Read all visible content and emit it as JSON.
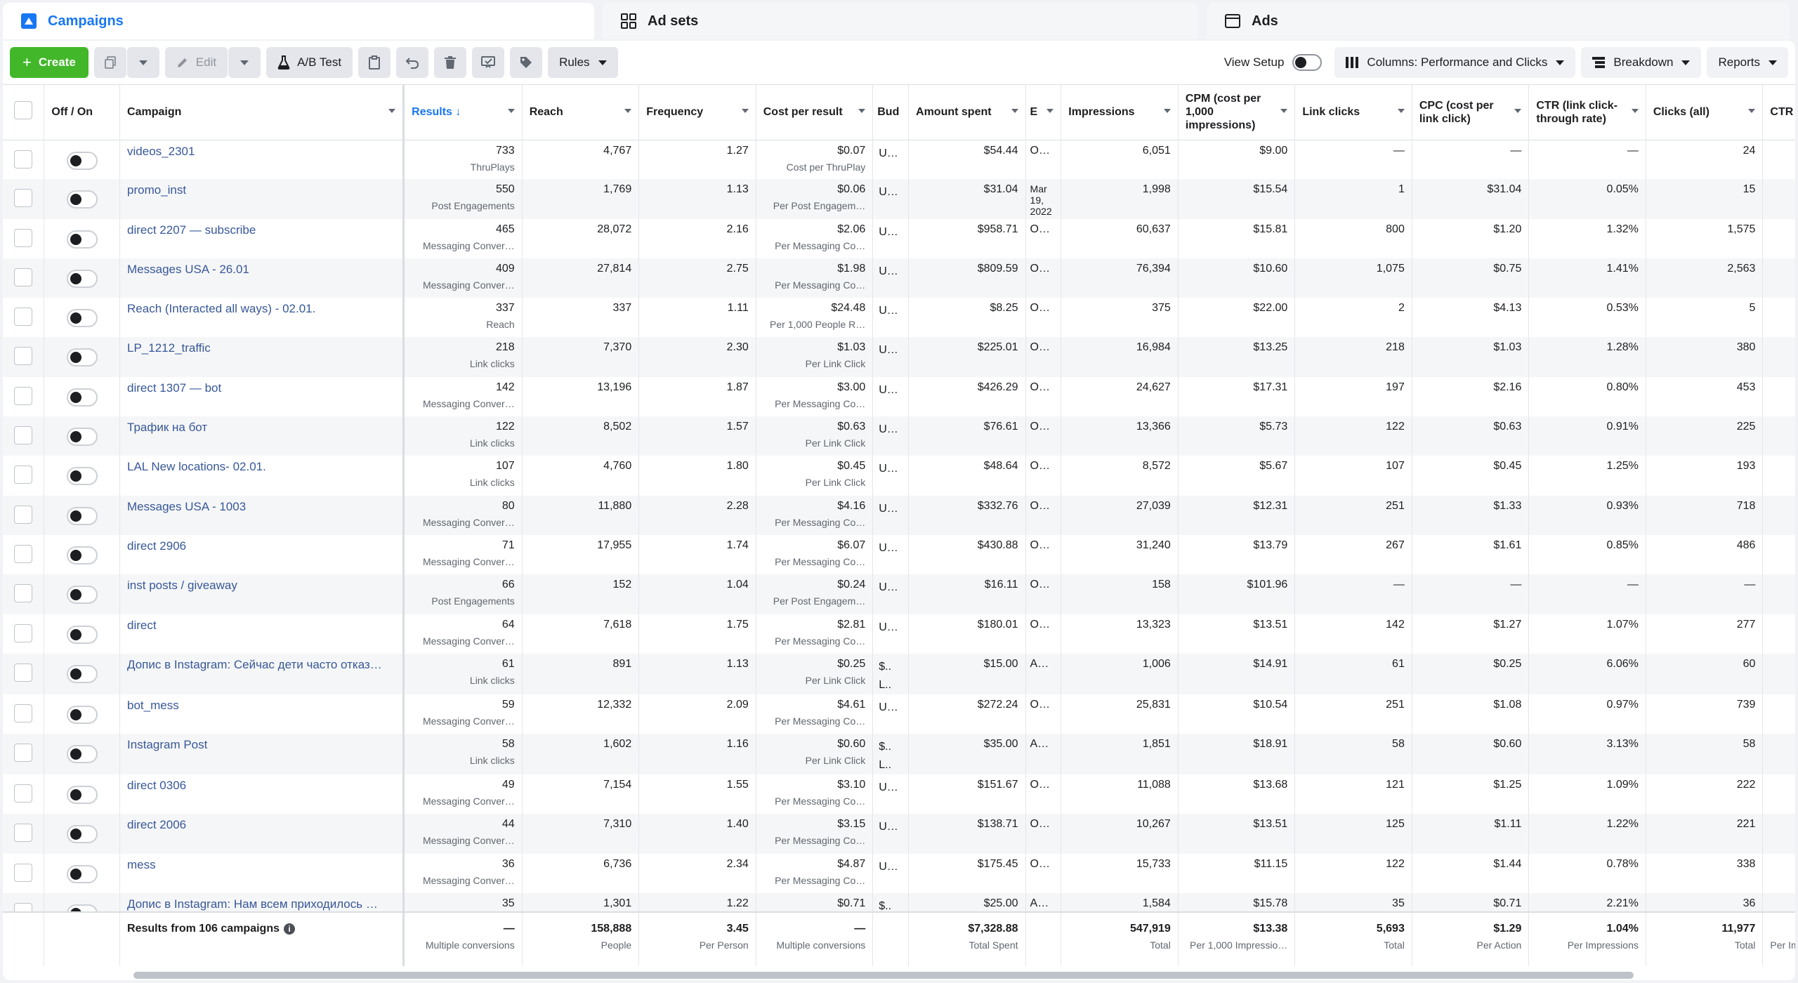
{
  "tabs": [
    {
      "label": "Campaigns",
      "icon": "campaign-icon"
    },
    {
      "label": "Ad sets",
      "icon": "grid-icon"
    },
    {
      "label": "Ads",
      "icon": "ad-icon"
    }
  ],
  "toolbar": {
    "create": "Create",
    "edit": "Edit",
    "ab_test": "A/B Test",
    "rules": "Rules",
    "view_setup": "View Setup",
    "columns": "Columns: Performance and Clicks",
    "breakdown": "Breakdown",
    "reports": "Reports"
  },
  "columns": {
    "offon": "Off / On",
    "campaign": "Campaign",
    "results": "Results ↓",
    "reach": "Reach",
    "frequency": "Frequency",
    "cost_per_result": "Cost per result",
    "budget": "Bud",
    "amount_spent": "Amount spent",
    "ends": "E",
    "impressions": "Impressions",
    "cpm": "CPM (cost per 1,000 impressions)",
    "link_clicks": "Link clicks",
    "cpc": "CPC (cost per link click)",
    "ctr_link": "CTR (link click-through rate)",
    "clicks_all": "Clicks (all)",
    "ctr_all": "CTR (all)"
  },
  "rows": [
    {
      "name": "videos_2301",
      "results": "733",
      "results_type": "ThruPlays",
      "reach": "4,767",
      "frequency": "1.27",
      "cpr": "$0.07",
      "cpr_type": "Cost per ThruPlay",
      "budget": "U…",
      "spent": "$54.44",
      "ends": "O…",
      "impressions": "6,051",
      "cpm": "$9.00",
      "link_clicks": "—",
      "cpc": "—",
      "ctr_link": "—",
      "clicks_all": "24"
    },
    {
      "name": "promo_inst",
      "results": "550",
      "results_type": "Post Engagements",
      "reach": "1,769",
      "frequency": "1.13",
      "cpr": "$0.06",
      "cpr_type": "Per Post Engagem…",
      "budget": "U…",
      "spent": "$31.04",
      "ends": "Mar 19, 2022",
      "impressions": "1,998",
      "cpm": "$15.54",
      "link_clicks": "1",
      "cpc": "$31.04",
      "ctr_link": "0.05%",
      "clicks_all": "15"
    },
    {
      "name": "direct 2207 — subscribe",
      "results": "465",
      "results_type": "Messaging Conver…",
      "reach": "28,072",
      "frequency": "2.16",
      "cpr": "$2.06",
      "cpr_type": "Per Messaging Co…",
      "budget": "U…",
      "spent": "$958.71",
      "ends": "O…",
      "impressions": "60,637",
      "cpm": "$15.81",
      "link_clicks": "800",
      "cpc": "$1.20",
      "ctr_link": "1.32%",
      "clicks_all": "1,575"
    },
    {
      "name": "Messages USA - 26.01",
      "results": "409",
      "results_type": "Messaging Conver…",
      "reach": "27,814",
      "frequency": "2.75",
      "cpr": "$1.98",
      "cpr_type": "Per Messaging Co…",
      "budget": "U…",
      "spent": "$809.59",
      "ends": "O…",
      "impressions": "76,394",
      "cpm": "$10.60",
      "link_clicks": "1,075",
      "cpc": "$0.75",
      "ctr_link": "1.41%",
      "clicks_all": "2,563"
    },
    {
      "name": "Reach (Interacted all ways) - 02.01.",
      "results": "337",
      "results_type": "Reach",
      "reach": "337",
      "frequency": "1.11",
      "cpr": "$24.48",
      "cpr_type": "Per 1,000 People R…",
      "budget": "U…",
      "spent": "$8.25",
      "ends": "O…",
      "impressions": "375",
      "cpm": "$22.00",
      "link_clicks": "2",
      "cpc": "$4.13",
      "ctr_link": "0.53%",
      "clicks_all": "5"
    },
    {
      "name": "LP_1212_traffic",
      "results": "218",
      "results_type": "Link clicks",
      "reach": "7,370",
      "frequency": "2.30",
      "cpr": "$1.03",
      "cpr_type": "Per Link Click",
      "budget": "U…",
      "spent": "$225.01",
      "ends": "O…",
      "impressions": "16,984",
      "cpm": "$13.25",
      "link_clicks": "218",
      "cpc": "$1.03",
      "ctr_link": "1.28%",
      "clicks_all": "380"
    },
    {
      "name": "direct 1307 — bot",
      "results": "142",
      "results_type": "Messaging Conver…",
      "reach": "13,196",
      "frequency": "1.87",
      "cpr": "$3.00",
      "cpr_type": "Per Messaging Co…",
      "budget": "U…",
      "spent": "$426.29",
      "ends": "O…",
      "impressions": "24,627",
      "cpm": "$17.31",
      "link_clicks": "197",
      "cpc": "$2.16",
      "ctr_link": "0.80%",
      "clicks_all": "453"
    },
    {
      "name": "Трафик на бот",
      "results": "122",
      "results_type": "Link clicks",
      "reach": "8,502",
      "frequency": "1.57",
      "cpr": "$0.63",
      "cpr_type": "Per Link Click",
      "budget": "U…",
      "spent": "$76.61",
      "ends": "O…",
      "impressions": "13,366",
      "cpm": "$5.73",
      "link_clicks": "122",
      "cpc": "$0.63",
      "ctr_link": "0.91%",
      "clicks_all": "225"
    },
    {
      "name": "LAL New locations- 02.01.",
      "results": "107",
      "results_type": "Link clicks",
      "reach": "4,760",
      "frequency": "1.80",
      "cpr": "$0.45",
      "cpr_type": "Per Link Click",
      "budget": "U…",
      "spent": "$48.64",
      "ends": "O…",
      "impressions": "8,572",
      "cpm": "$5.67",
      "link_clicks": "107",
      "cpc": "$0.45",
      "ctr_link": "1.25%",
      "clicks_all": "193"
    },
    {
      "name": "Messages USA - 1003",
      "results": "80",
      "results_type": "Messaging Conver…",
      "reach": "11,880",
      "frequency": "2.28",
      "cpr": "$4.16",
      "cpr_type": "Per Messaging Co…",
      "budget": "U…",
      "spent": "$332.76",
      "ends": "O…",
      "impressions": "27,039",
      "cpm": "$12.31",
      "link_clicks": "251",
      "cpc": "$1.33",
      "ctr_link": "0.93%",
      "clicks_all": "718"
    },
    {
      "name": "direct 2906",
      "results": "71",
      "results_type": "Messaging Conver…",
      "reach": "17,955",
      "frequency": "1.74",
      "cpr": "$6.07",
      "cpr_type": "Per Messaging Co…",
      "budget": "U…",
      "spent": "$430.88",
      "ends": "O…",
      "impressions": "31,240",
      "cpm": "$13.79",
      "link_clicks": "267",
      "cpc": "$1.61",
      "ctr_link": "0.85%",
      "clicks_all": "486"
    },
    {
      "name": "inst posts / giveaway",
      "results": "66",
      "results_type": "Post Engagements",
      "reach": "152",
      "frequency": "1.04",
      "cpr": "$0.24",
      "cpr_type": "Per Post Engagem…",
      "budget": "U…",
      "spent": "$16.11",
      "ends": "O…",
      "impressions": "158",
      "cpm": "$101.96",
      "link_clicks": "—",
      "cpc": "—",
      "ctr_link": "—",
      "clicks_all": "—"
    },
    {
      "name": "direct",
      "results": "64",
      "results_type": "Messaging Conver…",
      "reach": "7,618",
      "frequency": "1.75",
      "cpr": "$2.81",
      "cpr_type": "Per Messaging Co…",
      "budget": "U…",
      "spent": "$180.01",
      "ends": "O…",
      "impressions": "13,323",
      "cpm": "$13.51",
      "link_clicks": "142",
      "cpc": "$1.27",
      "ctr_link": "1.07%",
      "clicks_all": "277"
    },
    {
      "name": "Допис в Instagram: Сейчас дети часто отказ…",
      "results": "61",
      "results_type": "Link clicks",
      "reach": "891",
      "frequency": "1.13",
      "cpr": "$0.25",
      "cpr_type": "Per Link Click",
      "budget": "$.. L..",
      "spent": "$15.00",
      "ends": "A…",
      "impressions": "1,006",
      "cpm": "$14.91",
      "link_clicks": "61",
      "cpc": "$0.25",
      "ctr_link": "6.06%",
      "clicks_all": "60"
    },
    {
      "name": "bot_mess",
      "results": "59",
      "results_type": "Messaging Conver…",
      "reach": "12,332",
      "frequency": "2.09",
      "cpr": "$4.61",
      "cpr_type": "Per Messaging Co…",
      "budget": "U…",
      "spent": "$272.24",
      "ends": "O…",
      "impressions": "25,831",
      "cpm": "$10.54",
      "link_clicks": "251",
      "cpc": "$1.08",
      "ctr_link": "0.97%",
      "clicks_all": "739"
    },
    {
      "name": "Instagram Post",
      "results": "58",
      "results_type": "Link clicks",
      "reach": "1,602",
      "frequency": "1.16",
      "cpr": "$0.60",
      "cpr_type": "Per Link Click",
      "budget": "$.. L..",
      "spent": "$35.00",
      "ends": "A…",
      "impressions": "1,851",
      "cpm": "$18.91",
      "link_clicks": "58",
      "cpc": "$0.60",
      "ctr_link": "3.13%",
      "clicks_all": "58"
    },
    {
      "name": "direct 0306",
      "results": "49",
      "results_type": "Messaging Conver…",
      "reach": "7,154",
      "frequency": "1.55",
      "cpr": "$3.10",
      "cpr_type": "Per Messaging Co…",
      "budget": "U…",
      "spent": "$151.67",
      "ends": "O…",
      "impressions": "11,088",
      "cpm": "$13.68",
      "link_clicks": "121",
      "cpc": "$1.25",
      "ctr_link": "1.09%",
      "clicks_all": "222"
    },
    {
      "name": "direct 2006",
      "results": "44",
      "results_type": "Messaging Conver…",
      "reach": "7,310",
      "frequency": "1.40",
      "cpr": "$3.15",
      "cpr_type": "Per Messaging Co…",
      "budget": "U…",
      "spent": "$138.71",
      "ends": "O…",
      "impressions": "10,267",
      "cpm": "$13.51",
      "link_clicks": "125",
      "cpc": "$1.11",
      "ctr_link": "1.22%",
      "clicks_all": "221"
    },
    {
      "name": "mess",
      "results": "36",
      "results_type": "Messaging Conver…",
      "reach": "6,736",
      "frequency": "2.34",
      "cpr": "$4.87",
      "cpr_type": "Per Messaging Co…",
      "budget": "U…",
      "spent": "$175.45",
      "ends": "O…",
      "impressions": "15,733",
      "cpm": "$11.15",
      "link_clicks": "122",
      "cpc": "$1.44",
      "ctr_link": "0.78%",
      "clicks_all": "338"
    },
    {
      "name": "Допис в Instagram: Нам всем приходилось …",
      "results": "35",
      "results_type": "",
      "reach": "1,301",
      "frequency": "1.22",
      "cpr": "$0.71",
      "cpr_type": "",
      "budget": "$..",
      "spent": "$25.00",
      "ends": "A…",
      "impressions": "1,584",
      "cpm": "$15.78",
      "link_clicks": "35",
      "cpc": "$0.71",
      "ctr_link": "2.21%",
      "clicks_all": "36"
    }
  ],
  "summary": {
    "label": "Results from 106 campaigns",
    "results": "—",
    "results_sub": "Multiple conversions",
    "reach": "158,888",
    "reach_sub": "People",
    "frequency": "3.45",
    "frequency_sub": "Per Person",
    "cpr": "—",
    "cpr_sub": "Multiple conversions",
    "spent": "$7,328.88",
    "spent_sub": "Total Spent",
    "impressions": "547,919",
    "impressions_sub": "Total",
    "cpm": "$13.38",
    "cpm_sub": "Per 1,000 Impressio…",
    "link_clicks": "5,693",
    "link_clicks_sub": "Total",
    "cpc": "$1.29",
    "cpc_sub": "Per Action",
    "ctr_link": "1.04%",
    "ctr_link_sub": "Per Impressions",
    "clicks_all": "11,977",
    "clicks_all_sub": "Total",
    "ctr_all_sub": "Per Im"
  },
  "colors": {
    "accent": "#1877f2",
    "create": "#42b72a",
    "link": "#385898"
  }
}
